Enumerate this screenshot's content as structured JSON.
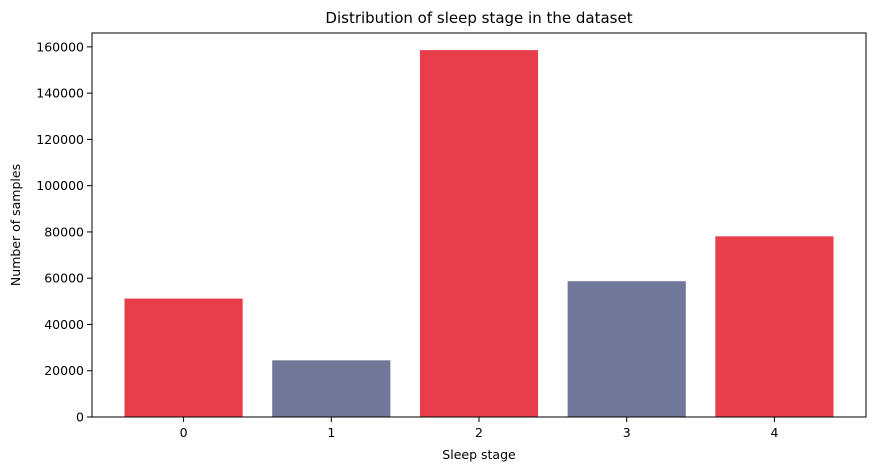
{
  "chart_data": {
    "type": "bar",
    "title": "Distribution of sleep stage in the dataset",
    "xlabel": "Sleep stage",
    "ylabel": "Number of samples",
    "categories": [
      "0",
      "1",
      "2",
      "3",
      "4"
    ],
    "values": [
      51200,
      24500,
      158600,
      58700,
      78100
    ],
    "bar_colors": [
      "#e83e49",
      "#717799",
      "#e83e49",
      "#717799",
      "#e83e49"
    ],
    "ylim": [
      0,
      166000
    ],
    "yticks": [
      0,
      20000,
      40000,
      60000,
      80000,
      100000,
      120000,
      140000,
      160000
    ],
    "grid": false
  }
}
